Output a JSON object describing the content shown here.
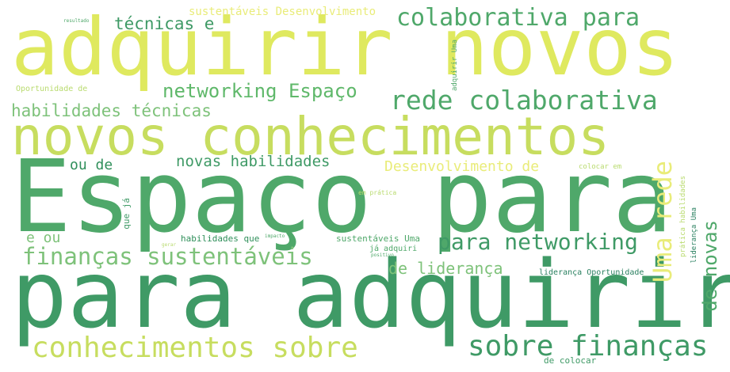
{
  "words": [
    {
      "text": "adquirir novos",
      "color": "#dfe95f"
    },
    {
      "text": "Espaço para",
      "color": "#4fa86a"
    },
    {
      "text": "para adquirir",
      "color": "#3f9a66"
    },
    {
      "text": "novos conhecimentos",
      "color": "#c7dd5f"
    },
    {
      "text": "colaborativa para",
      "color": "#4fa86a"
    },
    {
      "text": "rede colaborativa",
      "color": "#4fa86a"
    },
    {
      "text": "networking Espaço",
      "color": "#5fb86a"
    },
    {
      "text": "conhecimentos sobre",
      "color": "#c7dd5f"
    },
    {
      "text": "sobre finanças",
      "color": "#3f9a66"
    },
    {
      "text": "finanças sustentáveis",
      "color": "#7ec27a"
    },
    {
      "text": "para networking",
      "color": "#3f9a66"
    },
    {
      "text": "habilidades técnicas",
      "color": "#7ec27a"
    },
    {
      "text": "técnicas e",
      "color": "#3f9a66"
    },
    {
      "text": "novas habilidades",
      "color": "#3f9a66"
    },
    {
      "text": "Desenvolvimento de",
      "color": "#e9ec79"
    },
    {
      "text": "de liderança",
      "color": "#7ec27a"
    },
    {
      "text": "Uma rede",
      "color": "#e9ec79"
    },
    {
      "text": "de novas",
      "color": "#4fa86a"
    },
    {
      "text": "ou de",
      "color": "#2f8f5a"
    },
    {
      "text": "e ou",
      "color": "#7ec27a"
    },
    {
      "text": "sustentáveis Desenvolvimento",
      "color": "#e9ec79"
    },
    {
      "text": "Oportunidade de",
      "color": "#b9db6f"
    },
    {
      "text": "resultado",
      "color": "#4fa86a"
    },
    {
      "text": "adquirir Uma",
      "color": "#4fa86a"
    },
    {
      "text": "colocar em",
      "color": "#b9db6f"
    },
    {
      "text": "em prática",
      "color": "#b9db6f"
    },
    {
      "text": "que já",
      "color": "#3f9a66"
    },
    {
      "text": "habilidades que",
      "color": "#2f8f5a"
    },
    {
      "text": "sustentáveis Uma",
      "color": "#4fa86a"
    },
    {
      "text": "impacto",
      "color": "#4fa86a"
    },
    {
      "text": "gerar",
      "color": "#b9db6f"
    },
    {
      "text": "já adquiri",
      "color": "#4fa86a"
    },
    {
      "text": "positivo",
      "color": "#4fa86a"
    },
    {
      "text": "liderança Oportunidade",
      "color": "#2a8060"
    },
    {
      "text": "de colocar",
      "color": "#3f9a66"
    },
    {
      "text": "prática habilidades",
      "color": "#b9db6f"
    },
    {
      "text": "liderança Uma",
      "color": "#2a8060"
    }
  ]
}
